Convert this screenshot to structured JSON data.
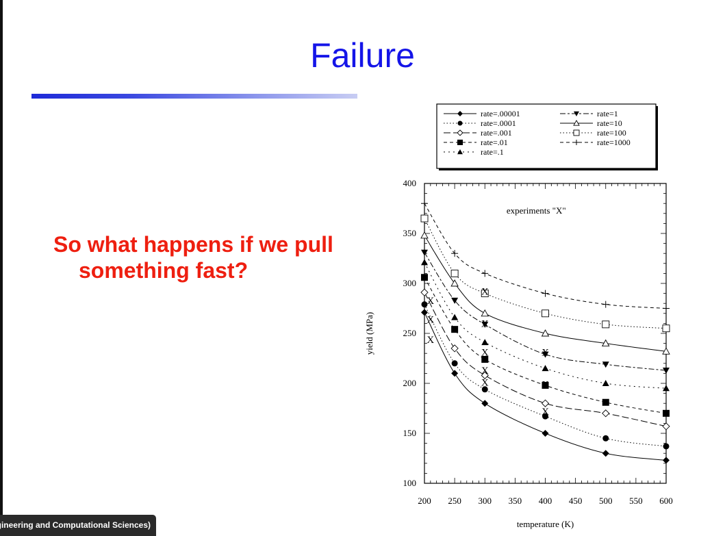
{
  "slide": {
    "title": "Failure",
    "bullet": "So what happens if we pull something fast?",
    "footer": "ngineering and Computational Sciences)"
  },
  "colors": {
    "title": "#1515e8",
    "bullet": "#ee1f10",
    "rule": "#1e2ad8"
  },
  "chart_data": {
    "type": "line",
    "title": "",
    "xlabel": "temperature (K)",
    "ylabel": "yield (MPa)",
    "xlim": [
      200,
      600
    ],
    "ylim": [
      100,
      400
    ],
    "xticks": [
      200,
      250,
      300,
      350,
      400,
      450,
      500,
      550,
      600
    ],
    "yticks": [
      100,
      150,
      200,
      250,
      300,
      350,
      400
    ],
    "annotation": "experiments \"X\"",
    "legend_position": "top",
    "x": [
      200,
      250,
      300,
      400,
      500,
      600
    ],
    "series": [
      {
        "name": "rate=.00001",
        "marker": "diamond-filled",
        "dash": "solid",
        "values": [
          271,
          210,
          180,
          150,
          130,
          123
        ]
      },
      {
        "name": "rate=.0001",
        "marker": "circle-filled",
        "dash": "dotted",
        "values": [
          279,
          220,
          194,
          167,
          145,
          137
        ]
      },
      {
        "name": "rate=.001",
        "marker": "diamond-open",
        "dash": "longdash",
        "values": [
          291,
          235,
          208,
          180,
          170,
          157
        ]
      },
      {
        "name": "rate=.01",
        "marker": "square-filled",
        "dash": "dashed",
        "values": [
          306,
          254,
          224,
          198,
          181,
          170
        ]
      },
      {
        "name": "rate=.1",
        "marker": "triangle-up-filled",
        "dash": "dashdot",
        "values": [
          321,
          266,
          241,
          215,
          200,
          195
        ]
      },
      {
        "name": "rate=1",
        "marker": "triangle-down-filled",
        "dash": "dashdash",
        "values": [
          331,
          283,
          259,
          229,
          219,
          213
        ]
      },
      {
        "name": "rate=10",
        "marker": "triangle-up-open",
        "dash": "solid",
        "values": [
          348,
          300,
          270,
          250,
          240,
          232
        ]
      },
      {
        "name": "rate=100",
        "marker": "square-open",
        "dash": "dotted",
        "values": [
          365,
          310,
          290,
          270,
          259,
          255
        ]
      },
      {
        "name": "rate=1000",
        "marker": "plus",
        "dash": "dashed",
        "values": [
          380,
          330,
          310,
          290,
          279,
          275
        ]
      }
    ],
    "experiments": {
      "label": "X",
      "points": [
        [
          210,
          283
        ],
        [
          210,
          264
        ],
        [
          210,
          244
        ],
        [
          300,
          292
        ],
        [
          300,
          260
        ],
        [
          300,
          231
        ],
        [
          300,
          213
        ],
        [
          300,
          201
        ],
        [
          400,
          231
        ],
        [
          400,
          199
        ],
        [
          400,
          172
        ]
      ]
    }
  }
}
